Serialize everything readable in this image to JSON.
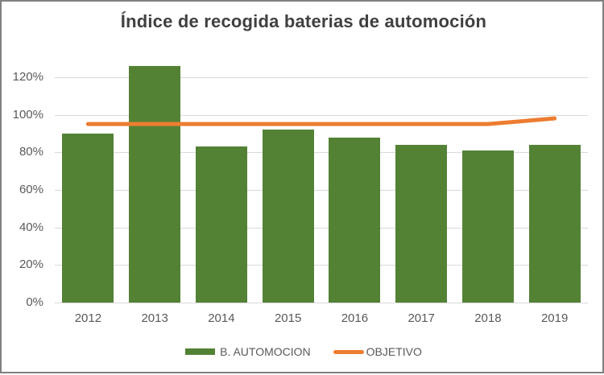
{
  "chart_data": {
    "type": "bar",
    "title": "Índice de recogida baterias de automoción",
    "categories": [
      "2012",
      "2013",
      "2014",
      "2015",
      "2016",
      "2017",
      "2018",
      "2019"
    ],
    "series": [
      {
        "name": "B. AUTOMOCION",
        "type": "bar",
        "color": "#548235",
        "values": [
          90,
          126,
          83,
          92,
          88,
          84,
          81,
          84
        ]
      },
      {
        "name": "OBJETIVO",
        "type": "line",
        "color": "#ED7D31",
        "values": [
          95,
          95,
          95,
          95,
          95,
          95,
          95,
          98
        ]
      }
    ],
    "xlabel": "",
    "ylabel": "",
    "y_ticks": [
      "0%",
      "20%",
      "40%",
      "60%",
      "80%",
      "100%",
      "120%"
    ],
    "y_tick_values": [
      0,
      20,
      40,
      60,
      80,
      100,
      120
    ],
    "ylim": [
      0,
      140
    ],
    "grid": true,
    "legend_position": "bottom",
    "colors": {
      "grid": "#d9d9d9",
      "axis_line": "#d9d9d9",
      "tick_label": "#595959",
      "title": "#404040",
      "frame_border": "#808080",
      "background": "#ffffff"
    }
  }
}
